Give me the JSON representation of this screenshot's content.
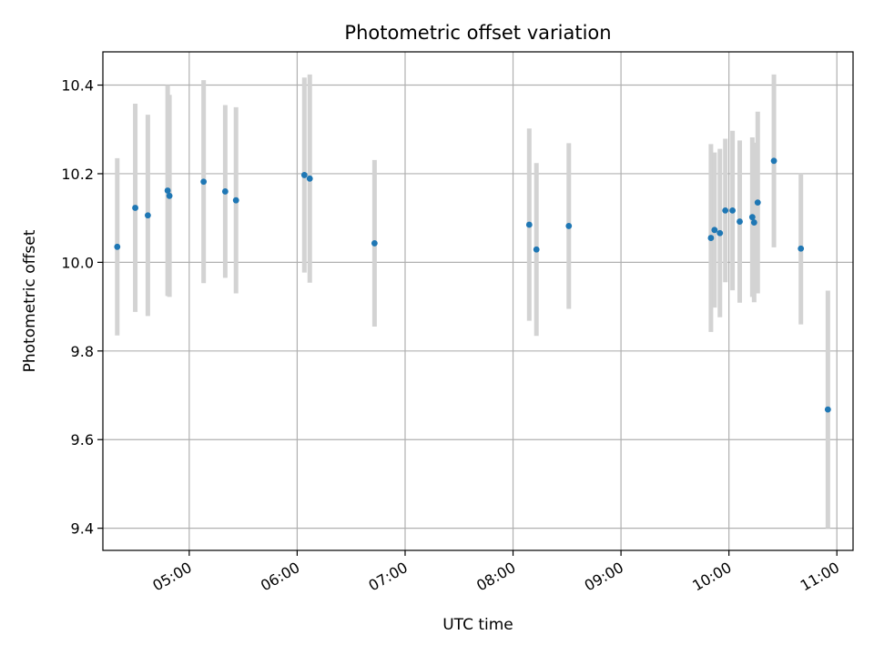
{
  "chart_data": {
    "type": "scatter",
    "title": "Photometric offset variation",
    "xlabel": "UTC time",
    "ylabel": "Photometric offset",
    "x_unit": "time (HH:MM)",
    "xlim": [
      "04:12",
      "11:09"
    ],
    "ylim": [
      9.35,
      10.475
    ],
    "grid": true,
    "x_ticks": [
      "05:00",
      "06:00",
      "07:00",
      "08:00",
      "09:00",
      "10:00",
      "11:00"
    ],
    "y_ticks": [
      "9.4",
      "9.6",
      "9.8",
      "10.0",
      "10.2",
      "10.4"
    ],
    "colors": {
      "point": "#1f77b4",
      "errorbar": "#d3d3d3",
      "grid": "#b0b0b0"
    },
    "points": [
      {
        "x": "04:20",
        "y": 10.035,
        "err": 0.2
      },
      {
        "x": "04:30",
        "y": 10.123,
        "err": 0.235
      },
      {
        "x": "04:37",
        "y": 10.106,
        "err": 0.227
      },
      {
        "x": "04:48",
        "y": 10.162,
        "err": 0.238
      },
      {
        "x": "04:49",
        "y": 10.15,
        "err": 0.228
      },
      {
        "x": "05:08",
        "y": 10.182,
        "err": 0.229
      },
      {
        "x": "05:20",
        "y": 10.16,
        "err": 0.195
      },
      {
        "x": "05:26",
        "y": 10.14,
        "err": 0.21
      },
      {
        "x": "06:04",
        "y": 10.197,
        "err": 0.22
      },
      {
        "x": "06:07",
        "y": 10.189,
        "err": 0.235
      },
      {
        "x": "06:43",
        "y": 10.043,
        "err": 0.188
      },
      {
        "x": "08:09",
        "y": 10.085,
        "err": 0.217
      },
      {
        "x": "08:13",
        "y": 10.029,
        "err": 0.195
      },
      {
        "x": "08:31",
        "y": 10.082,
        "err": 0.187
      },
      {
        "x": "09:50",
        "y": 10.055,
        "err": 0.212
      },
      {
        "x": "09:52",
        "y": 10.073,
        "err": 0.175
      },
      {
        "x": "09:55",
        "y": 10.066,
        "err": 0.19
      },
      {
        "x": "09:58",
        "y": 10.117,
        "err": 0.162
      },
      {
        "x": "10:02",
        "y": 10.117,
        "err": 0.18
      },
      {
        "x": "10:06",
        "y": 10.092,
        "err": 0.183
      },
      {
        "x": "10:13",
        "y": 10.102,
        "err": 0.18
      },
      {
        "x": "10:14",
        "y": 10.09,
        "err": 0.18
      },
      {
        "x": "10:16",
        "y": 10.135,
        "err": 0.205
      },
      {
        "x": "10:25",
        "y": 10.229,
        "err": 0.195
      },
      {
        "x": "10:40",
        "y": 10.031,
        "err": 0.171
      },
      {
        "x": "10:55",
        "y": 9.668,
        "err": 0.268
      }
    ]
  }
}
